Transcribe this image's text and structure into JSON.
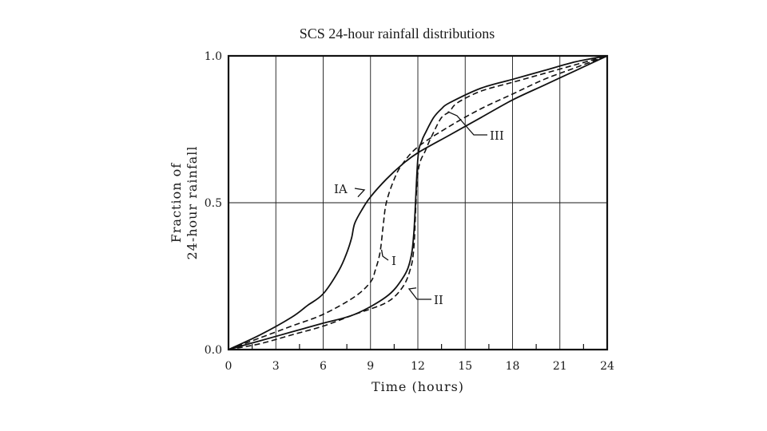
{
  "chart_data": {
    "type": "line",
    "title": "SCS 24-hour rainfall distributions",
    "xlabel": "Time (hours)",
    "ylabel_line1": "Fraction of",
    "ylabel_line2": "24-hour rainfall",
    "xlim": [
      0,
      24
    ],
    "ylim": [
      0,
      1
    ],
    "x_ticks": [
      0,
      3,
      6,
      9,
      12,
      15,
      18,
      21,
      24
    ],
    "x_tick_labels": [
      "0",
      "3",
      "6",
      "9",
      "12",
      "15",
      "18",
      "21",
      "24"
    ],
    "y_ticks": [
      0,
      0.5,
      1
    ],
    "y_tick_labels": [
      "0.0",
      "0.5",
      "1.0"
    ],
    "grid": true,
    "series": [
      {
        "name": "IA",
        "style": "solid",
        "x": [
          0,
          2,
          4,
          5,
          6,
          7,
          7.5,
          7.8,
          8,
          8.5,
          9,
          10,
          11,
          12,
          14,
          16,
          18,
          20,
          22,
          24
        ],
        "y": [
          0,
          0.05,
          0.11,
          0.15,
          0.19,
          0.27,
          0.33,
          0.38,
          0.43,
          0.48,
          0.52,
          0.58,
          0.63,
          0.67,
          0.73,
          0.79,
          0.85,
          0.9,
          0.95,
          1.0
        ]
      },
      {
        "name": "I",
        "style": "dashed",
        "x": [
          0,
          2,
          4,
          6,
          8,
          9,
          9.3,
          9.6,
          9.8,
          10,
          10.5,
          11,
          12,
          14,
          16,
          18,
          20,
          22,
          24
        ],
        "y": [
          0,
          0.04,
          0.08,
          0.12,
          0.18,
          0.23,
          0.27,
          0.33,
          0.42,
          0.5,
          0.58,
          0.63,
          0.69,
          0.76,
          0.82,
          0.87,
          0.92,
          0.96,
          1.0
        ]
      },
      {
        "name": "II",
        "style": "solid",
        "x": [
          0,
          2,
          4,
          6,
          8,
          10,
          11,
          11.5,
          11.75,
          12,
          12.25,
          12.5,
          13,
          13.5,
          14,
          16,
          18,
          20,
          22,
          24
        ],
        "y": [
          0,
          0.03,
          0.06,
          0.09,
          0.12,
          0.18,
          0.24,
          0.3,
          0.4,
          0.65,
          0.71,
          0.74,
          0.79,
          0.82,
          0.84,
          0.89,
          0.92,
          0.95,
          0.98,
          1.0
        ]
      },
      {
        "name": "III",
        "style": "dashed",
        "x": [
          0,
          2,
          4,
          6,
          8,
          10,
          11,
          11.5,
          11.75,
          12,
          12.5,
          13,
          13.5,
          14,
          14.5,
          16,
          18,
          20,
          22,
          24
        ],
        "y": [
          0,
          0.02,
          0.05,
          0.08,
          0.12,
          0.16,
          0.21,
          0.27,
          0.35,
          0.6,
          0.68,
          0.74,
          0.79,
          0.81,
          0.84,
          0.88,
          0.91,
          0.94,
          0.97,
          1.0
        ]
      }
    ],
    "annotations": [
      {
        "text": "IA",
        "at_x": 8.2,
        "at_y": 0.52
      },
      {
        "text": "I",
        "at_x": 9.7,
        "at_y": 0.34
      },
      {
        "text": "II",
        "at_x": 11.9,
        "at_y": 0.21
      },
      {
        "text": "III",
        "at_x": 13.9,
        "at_y": 0.81
      }
    ]
  }
}
